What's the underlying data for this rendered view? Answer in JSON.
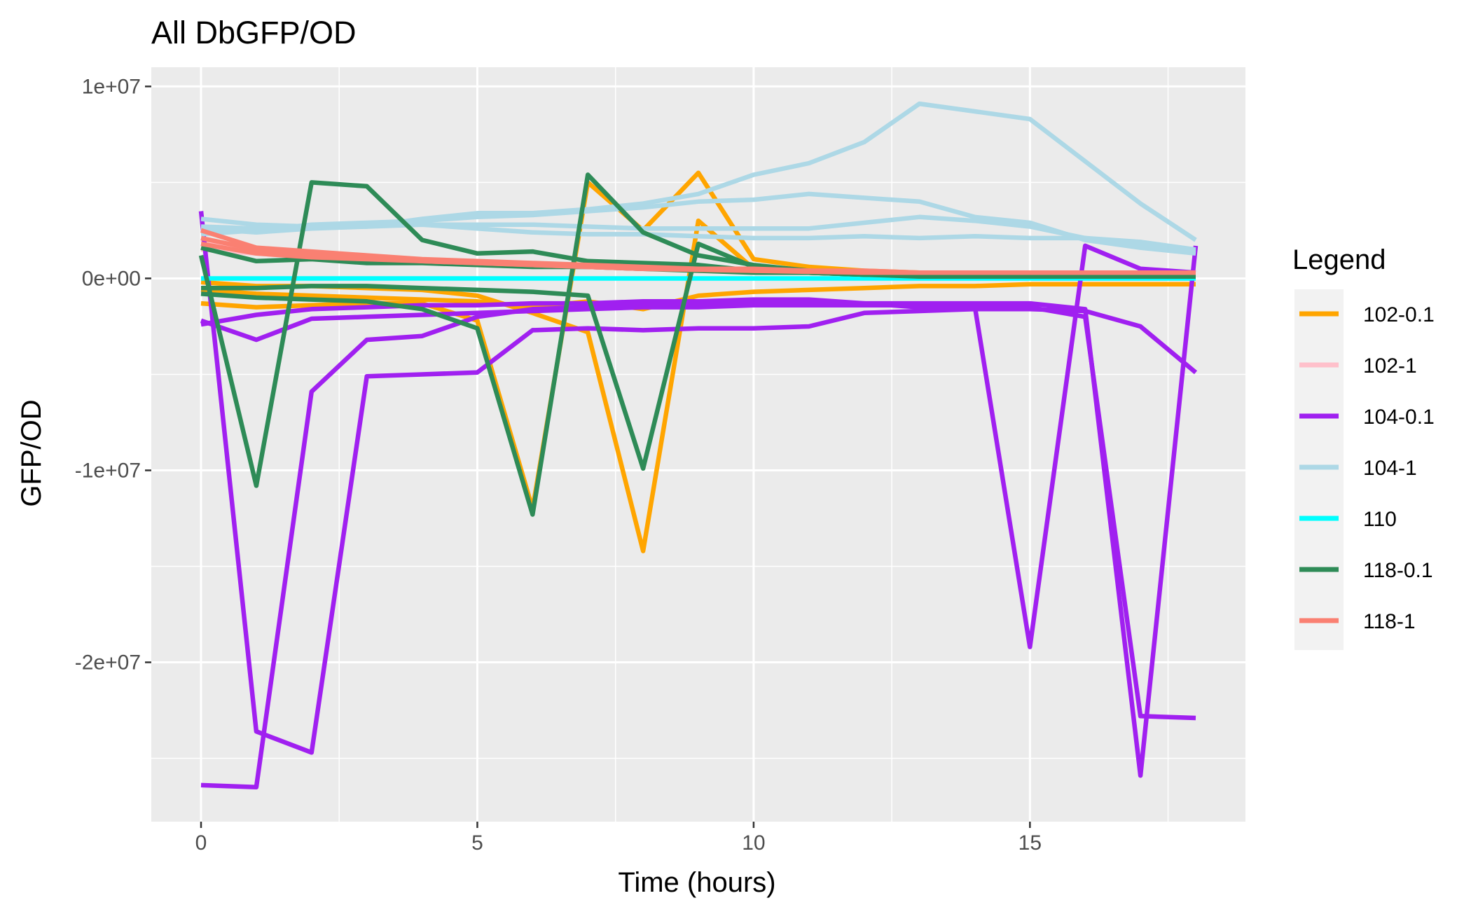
{
  "chart_data": {
    "type": "line",
    "title": "All DbGFP/OD",
    "xlabel": "Time (hours)",
    "ylabel": "GFP/OD",
    "xlim": [
      -0.9,
      18.9
    ],
    "ylim": [
      -28300000.0,
      11000000.0
    ],
    "x_ticks": [
      0,
      5,
      10,
      15
    ],
    "x_tick_labels": [
      "0",
      "5",
      "10",
      "15"
    ],
    "y_ticks": [
      -20000000.0,
      -10000000.0,
      0,
      10000000.0
    ],
    "y_tick_labels": [
      "-2e+07",
      "-1e+07",
      "0e+00",
      "1e+07"
    ],
    "grid": true,
    "legend": {
      "title": "Legend",
      "placement": "right",
      "entries": [
        {
          "label": "102-0.1",
          "color": "#FFA500"
        },
        {
          "label": "102-1",
          "color": "#FFC0CB"
        },
        {
          "label": "104-0.1",
          "color": "#A020F0"
        },
        {
          "label": "104-1",
          "color": "#ADD8E6"
        },
        {
          "label": "110",
          "color": "#00FFFF"
        },
        {
          "label": "118-0.1",
          "color": "#2E8B57"
        },
        {
          "label": "118-1",
          "color": "#FA8072"
        }
      ]
    },
    "x": [
      0,
      1,
      2,
      3,
      4,
      5,
      6,
      7,
      8,
      9,
      10,
      11,
      12,
      13,
      14,
      15,
      16,
      17,
      18
    ],
    "series": [
      {
        "group": "102-0.1",
        "color": "#FFA500",
        "values": [
          -600000,
          -800000,
          -900000,
          -1000000,
          -1100000,
          -1200000,
          -1500000,
          -1200000,
          -1600000,
          -900000,
          -700000,
          -600000,
          -500000,
          -400000,
          -400000,
          -300000,
          -300000,
          -300000,
          -300000
        ]
      },
      {
        "group": "102-0.1",
        "color": "#FFA500",
        "values": [
          -1300000,
          -1500000,
          -1400000,
          -1300000,
          -1300000,
          -2200000,
          -12000000,
          5000000,
          2500000,
          5500000,
          1000000,
          600000,
          400000,
          300000,
          200000,
          200000,
          200000,
          200000,
          200000
        ]
      },
      {
        "group": "102-0.1",
        "color": "#FFA500",
        "values": [
          -200000,
          -400000,
          -400000,
          -500000,
          -600000,
          -900000,
          -1800000,
          -2800000,
          -14200000,
          3000000,
          500000,
          300000,
          200000,
          100000,
          100000,
          100000,
          100000,
          100000,
          100000
        ]
      },
      {
        "group": "102-1",
        "color": "#FFC0CB",
        "values": [
          2000000,
          1500000,
          1300000,
          1100000,
          900000,
          800000,
          700000,
          600000,
          500000,
          500000,
          400000,
          400000,
          300000,
          300000,
          300000,
          300000,
          200000,
          200000,
          200000
        ]
      },
      {
        "group": "102-1",
        "color": "#FFC0CB",
        "values": [
          1500000,
          1300000,
          1100000,
          1000000,
          900000,
          800000,
          700000,
          600000,
          500000,
          450000,
          400000,
          350000,
          300000,
          300000,
          250000,
          250000,
          200000,
          200000,
          200000
        ]
      },
      {
        "group": "104-0.1",
        "color": "#A020F0",
        "values": [
          3500000,
          -23600000,
          -24700000,
          -5100000,
          -5000000,
          -4900000,
          -2700000,
          -2600000,
          -2700000,
          -2600000,
          -2600000,
          -2500000,
          -1800000,
          -1700000,
          -1600000,
          -1600000,
          -1700000,
          -2500000,
          -4900000
        ]
      },
      {
        "group": "104-0.1",
        "color": "#A020F0",
        "values": [
          -26400000,
          -26500000,
          -5900000,
          -3200000,
          -3000000,
          -2000000,
          -1600000,
          -1500000,
          -1400000,
          -1300000,
          -1300000,
          -1300000,
          -1300000,
          -1300000,
          -1300000,
          -1300000,
          -1600000,
          -25900000,
          1700000
        ]
      },
      {
        "group": "104-0.1",
        "color": "#A020F0",
        "values": [
          -2200000,
          -3200000,
          -2100000,
          -2000000,
          -1900000,
          -1800000,
          -1700000,
          -1600000,
          -1500000,
          -1500000,
          -1400000,
          -1400000,
          -1400000,
          -1400000,
          -1400000,
          -19200000,
          1700000,
          500000,
          300000
        ]
      },
      {
        "group": "104-0.1",
        "color": "#A020F0",
        "values": [
          -2400000,
          -1900000,
          -1600000,
          -1500000,
          -1400000,
          -1400000,
          -1300000,
          -1300000,
          -1200000,
          -1200000,
          -1100000,
          -1100000,
          -1300000,
          -1500000,
          -1500000,
          -1500000,
          -2000000,
          -22800000,
          -22900000
        ]
      },
      {
        "group": "104-1",
        "color": "#ADD8E6",
        "values": [
          3100000,
          2800000,
          2700000,
          2700000,
          2800000,
          2600000,
          2400000,
          2300000,
          2300000,
          2200000,
          2100000,
          2100000,
          2200000,
          2100000,
          2200000,
          2100000,
          2100000,
          1900000,
          1500000
        ]
      },
      {
        "group": "104-1",
        "color": "#ADD8E6",
        "values": [
          2300000,
          2500000,
          2800000,
          2900000,
          3000000,
          3200000,
          3300000,
          3500000,
          3700000,
          4000000,
          4100000,
          4400000,
          4200000,
          4000000,
          3200000,
          2900000,
          2000000,
          1600000,
          1300000
        ]
      },
      {
        "group": "104-1",
        "color": "#ADD8E6",
        "values": [
          2600000,
          2400000,
          2600000,
          2700000,
          3100000,
          3400000,
          3400000,
          3600000,
          3900000,
          4400000,
          5400000,
          6000000,
          7100000,
          9100000,
          8700000,
          8300000,
          6100000,
          3900000,
          2000000
        ]
      },
      {
        "group": "104-1",
        "color": "#ADD8E6",
        "values": [
          2700000,
          2600000,
          2700000,
          2800000,
          2800000,
          2800000,
          2800000,
          2700000,
          2600000,
          2600000,
          2600000,
          2600000,
          2900000,
          3200000,
          3000000,
          2700000,
          2100000,
          1700000,
          1400000
        ]
      },
      {
        "group": "110",
        "color": "#00FFFF",
        "values": [
          0,
          0,
          0,
          0,
          0,
          0,
          0,
          0,
          0,
          0,
          0,
          0,
          0,
          0,
          0,
          0,
          0,
          0,
          0
        ]
      },
      {
        "group": "118-0.1",
        "color": "#2E8B57",
        "values": [
          1200000,
          -10800000,
          5000000,
          4800000,
          2000000,
          1300000,
          1400000,
          900000,
          800000,
          700000,
          400000,
          300000,
          200000,
          200000,
          200000,
          200000,
          200000,
          200000,
          200000
        ]
      },
      {
        "group": "118-0.1",
        "color": "#2E8B57",
        "values": [
          -800000,
          -1000000,
          -1100000,
          -1200000,
          -1600000,
          -2600000,
          -12300000,
          5400000,
          2400000,
          1200000,
          700000,
          400000,
          300000,
          200000,
          200000,
          200000,
          200000,
          200000,
          200000
        ]
      },
      {
        "group": "118-0.1",
        "color": "#2E8B57",
        "values": [
          -500000,
          -500000,
          -400000,
          -400000,
          -500000,
          -600000,
          -700000,
          -900000,
          -9900000,
          1800000,
          600000,
          300000,
          200000,
          100000,
          100000,
          100000,
          100000,
          100000,
          100000
        ]
      },
      {
        "group": "118-0.1",
        "color": "#2E8B57",
        "values": [
          1600000,
          900000,
          1000000,
          800000,
          800000,
          700000,
          600000,
          600000,
          500000,
          400000,
          300000,
          300000,
          200000,
          200000,
          200000,
          200000,
          200000,
          200000,
          200000
        ]
      },
      {
        "group": "118-1",
        "color": "#FA8072",
        "values": [
          2500000,
          1600000,
          1400000,
          1200000,
          1000000,
          900000,
          800000,
          700000,
          600000,
          500000,
          500000,
          400000,
          400000,
          300000,
          300000,
          300000,
          300000,
          300000,
          300000
        ]
      },
      {
        "group": "118-1",
        "color": "#FA8072",
        "values": [
          2100000,
          1500000,
          1300000,
          1100000,
          900000,
          800000,
          700000,
          600000,
          500000,
          500000,
          400000,
          400000,
          300000,
          300000,
          300000,
          300000,
          300000,
          300000,
          300000
        ]
      },
      {
        "group": "118-1",
        "color": "#FA8072",
        "values": [
          1800000,
          1300000,
          1100000,
          1000000,
          900000,
          800000,
          700000,
          600000,
          500000,
          450000,
          400000,
          350000,
          300000,
          300000,
          300000,
          300000,
          300000,
          300000,
          300000
        ]
      }
    ]
  }
}
